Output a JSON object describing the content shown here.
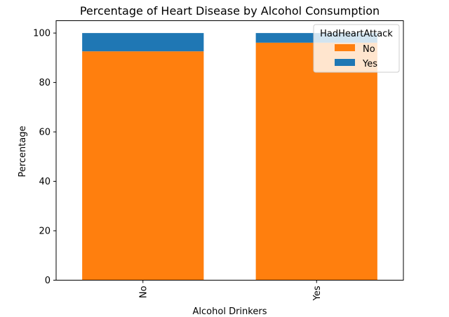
{
  "chart_data": {
    "type": "bar",
    "stacked": true,
    "title": "Percentage of Heart Disease by Alcohol Consumption",
    "xlabel": "Alcohol Drinkers",
    "ylabel": "Percentage",
    "categories": [
      "No",
      "Yes"
    ],
    "ylim": [
      0,
      105
    ],
    "yticks": [
      0,
      20,
      40,
      60,
      80,
      100
    ],
    "grid": false,
    "legend": {
      "title": "HadHeartAttack",
      "placement": "top-right"
    },
    "series": [
      {
        "name": "No",
        "color": "#ff7f0e",
        "values": [
          92.6,
          96.1
        ]
      },
      {
        "name": "Yes",
        "color": "#1f77b4",
        "values": [
          7.4,
          3.9
        ]
      }
    ]
  }
}
